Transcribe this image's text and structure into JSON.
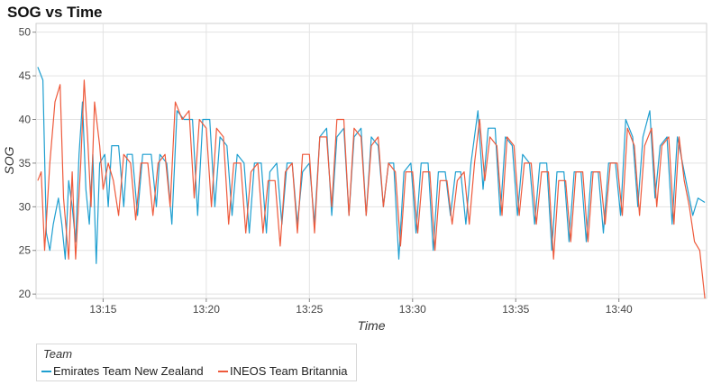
{
  "chart_data": {
    "type": "line",
    "title": "SOG vs Time",
    "xlabel": "Time",
    "ylabel": "SOG",
    "x_range": [
      "13:11:45",
      "13:44:15"
    ],
    "ylim": [
      19.5,
      51
    ],
    "y_ticks": [
      20,
      25,
      30,
      35,
      40,
      45,
      50
    ],
    "x_ticks": [
      "13:15",
      "13:20",
      "13:25",
      "13:30",
      "13:35",
      "13:40"
    ],
    "grid": true,
    "legend": {
      "title": "Team",
      "placement": "bottom-left"
    },
    "series": [
      {
        "name": "Emirates Team New Zealand",
        "color": "#1f9fd0",
        "points": [
          [
            "13:11:50",
            46
          ],
          [
            "13:12:05",
            44.5
          ],
          [
            "13:12:15",
            27
          ],
          [
            "13:12:25",
            25
          ],
          [
            "13:12:35",
            28
          ],
          [
            "13:12:50",
            31
          ],
          [
            "13:13:00",
            28
          ],
          [
            "13:13:10",
            24
          ],
          [
            "13:13:20",
            33
          ],
          [
            "13:13:30",
            30
          ],
          [
            "13:13:40",
            26
          ],
          [
            "13:13:50",
            36
          ],
          [
            "13:14:00",
            42
          ],
          [
            "13:14:10",
            32
          ],
          [
            "13:14:20",
            28
          ],
          [
            "13:14:30",
            36
          ],
          [
            "13:14:40",
            23.5
          ],
          [
            "13:14:50",
            35
          ],
          [
            "13:15:05",
            36
          ],
          [
            "13:15:15",
            30
          ],
          [
            "13:15:25",
            37
          ],
          [
            "13:15:45",
            37
          ],
          [
            "13:16:00",
            30
          ],
          [
            "13:16:10",
            36
          ],
          [
            "13:16:25",
            36
          ],
          [
            "13:16:40",
            29
          ],
          [
            "13:16:55",
            36
          ],
          [
            "13:17:20",
            36
          ],
          [
            "13:17:35",
            30
          ],
          [
            "13:17:45",
            36
          ],
          [
            "13:18:05",
            35
          ],
          [
            "13:18:20",
            28
          ],
          [
            "13:18:35",
            41
          ],
          [
            "13:18:55",
            40
          ],
          [
            "13:19:20",
            40
          ],
          [
            "13:19:35",
            29
          ],
          [
            "13:19:50",
            40
          ],
          [
            "13:20:10",
            40
          ],
          [
            "13:20:25",
            30
          ],
          [
            "13:20:40",
            38
          ],
          [
            "13:21:00",
            37
          ],
          [
            "13:21:15",
            29
          ],
          [
            "13:21:30",
            36
          ],
          [
            "13:21:50",
            35
          ],
          [
            "13:22:05",
            27
          ],
          [
            "13:22:20",
            35
          ],
          [
            "13:22:40",
            35
          ],
          [
            "13:22:55",
            27
          ],
          [
            "13:23:05",
            34
          ],
          [
            "13:23:25",
            35
          ],
          [
            "13:23:40",
            28
          ],
          [
            "13:23:55",
            35
          ],
          [
            "13:24:10",
            35
          ],
          [
            "13:24:25",
            28
          ],
          [
            "13:24:40",
            34
          ],
          [
            "13:25:00",
            35
          ],
          [
            "13:25:15",
            28
          ],
          [
            "13:25:30",
            38
          ],
          [
            "13:25:50",
            39
          ],
          [
            "13:26:05",
            29
          ],
          [
            "13:26:20",
            38
          ],
          [
            "13:26:40",
            39
          ],
          [
            "13:26:55",
            29
          ],
          [
            "13:27:10",
            38
          ],
          [
            "13:27:30",
            39
          ],
          [
            "13:27:45",
            29
          ],
          [
            "13:28:00",
            38
          ],
          [
            "13:28:20",
            37
          ],
          [
            "13:28:35",
            30
          ],
          [
            "13:28:50",
            35
          ],
          [
            "13:29:05",
            35
          ],
          [
            "13:29:20",
            24
          ],
          [
            "13:29:35",
            34
          ],
          [
            "13:29:55",
            35
          ],
          [
            "13:30:10",
            27
          ],
          [
            "13:30:25",
            35
          ],
          [
            "13:30:45",
            35
          ],
          [
            "13:31:00",
            25
          ],
          [
            "13:31:15",
            34
          ],
          [
            "13:31:35",
            34
          ],
          [
            "13:31:50",
            29
          ],
          [
            "13:32:05",
            34
          ],
          [
            "13:32:20",
            34
          ],
          [
            "13:32:35",
            28
          ],
          [
            "13:32:50",
            35
          ],
          [
            "13:33:10",
            41
          ],
          [
            "13:33:25",
            32
          ],
          [
            "13:33:40",
            39
          ],
          [
            "13:34:00",
            39
          ],
          [
            "13:34:15",
            29
          ],
          [
            "13:34:30",
            38
          ],
          [
            "13:34:50",
            37
          ],
          [
            "13:35:05",
            29
          ],
          [
            "13:35:20",
            36
          ],
          [
            "13:35:40",
            35
          ],
          [
            "13:35:55",
            28
          ],
          [
            "13:36:10",
            35
          ],
          [
            "13:36:30",
            35
          ],
          [
            "13:36:45",
            25
          ],
          [
            "13:37:00",
            34
          ],
          [
            "13:37:20",
            34
          ],
          [
            "13:37:35",
            26
          ],
          [
            "13:37:50",
            34
          ],
          [
            "13:38:10",
            34
          ],
          [
            "13:38:25",
            26
          ],
          [
            "13:38:40",
            34
          ],
          [
            "13:39:00",
            34
          ],
          [
            "13:39:15",
            27
          ],
          [
            "13:39:30",
            35
          ],
          [
            "13:39:50",
            35
          ],
          [
            "13:40:05",
            29
          ],
          [
            "13:40:20",
            40
          ],
          [
            "13:40:40",
            38
          ],
          [
            "13:40:55",
            30
          ],
          [
            "13:41:10",
            38
          ],
          [
            "13:41:30",
            41
          ],
          [
            "13:41:45",
            31
          ],
          [
            "13:42:00",
            37
          ],
          [
            "13:42:20",
            38
          ],
          [
            "13:42:35",
            28
          ],
          [
            "13:42:50",
            38
          ],
          [
            "13:43:05",
            35
          ],
          [
            "13:43:20",
            32
          ],
          [
            "13:43:35",
            29
          ],
          [
            "13:43:50",
            31
          ],
          [
            "13:44:10",
            30.5
          ]
        ]
      },
      {
        "name": "INEOS Team Britannia",
        "color": "#ee5a3c",
        "points": [
          [
            "13:11:50",
            33
          ],
          [
            "13:12:00",
            34
          ],
          [
            "13:12:10",
            25
          ],
          [
            "13:12:25",
            35
          ],
          [
            "13:12:40",
            42
          ],
          [
            "13:12:55",
            44
          ],
          [
            "13:13:05",
            31
          ],
          [
            "13:13:20",
            24
          ],
          [
            "13:13:30",
            34
          ],
          [
            "13:13:40",
            24
          ],
          [
            "13:13:55",
            35
          ],
          [
            "13:14:05",
            44.5
          ],
          [
            "13:14:15",
            38
          ],
          [
            "13:14:25",
            30
          ],
          [
            "13:14:35",
            42
          ],
          [
            "13:14:50",
            37
          ],
          [
            "13:15:00",
            32
          ],
          [
            "13:15:15",
            35
          ],
          [
            "13:15:30",
            33
          ],
          [
            "13:15:45",
            29
          ],
          [
            "13:16:00",
            36
          ],
          [
            "13:16:20",
            35
          ],
          [
            "13:16:35",
            28.5
          ],
          [
            "13:16:50",
            35
          ],
          [
            "13:17:10",
            35
          ],
          [
            "13:17:25",
            29
          ],
          [
            "13:17:40",
            35
          ],
          [
            "13:18:00",
            36
          ],
          [
            "13:18:15",
            30
          ],
          [
            "13:18:30",
            42
          ],
          [
            "13:18:50",
            40
          ],
          [
            "13:19:10",
            41
          ],
          [
            "13:19:25",
            31
          ],
          [
            "13:19:40",
            40
          ],
          [
            "13:20:00",
            39
          ],
          [
            "13:20:15",
            30
          ],
          [
            "13:20:30",
            39
          ],
          [
            "13:20:50",
            38
          ],
          [
            "13:21:05",
            28
          ],
          [
            "13:21:20",
            35
          ],
          [
            "13:21:40",
            35
          ],
          [
            "13:21:55",
            27
          ],
          [
            "13:22:10",
            34
          ],
          [
            "13:22:30",
            35
          ],
          [
            "13:22:45",
            27
          ],
          [
            "13:23:00",
            33
          ],
          [
            "13:23:20",
            33
          ],
          [
            "13:23:35",
            25.5
          ],
          [
            "13:23:50",
            34
          ],
          [
            "13:24:10",
            35
          ],
          [
            "13:24:25",
            27
          ],
          [
            "13:24:40",
            36
          ],
          [
            "13:25:00",
            36
          ],
          [
            "13:25:15",
            27
          ],
          [
            "13:25:30",
            38
          ],
          [
            "13:25:50",
            38
          ],
          [
            "13:26:05",
            30
          ],
          [
            "13:26:20",
            40
          ],
          [
            "13:26:40",
            40
          ],
          [
            "13:26:55",
            29
          ],
          [
            "13:27:10",
            39
          ],
          [
            "13:27:30",
            38
          ],
          [
            "13:27:45",
            29
          ],
          [
            "13:28:00",
            37
          ],
          [
            "13:28:20",
            38
          ],
          [
            "13:28:35",
            30
          ],
          [
            "13:28:50",
            35
          ],
          [
            "13:29:10",
            34
          ],
          [
            "13:29:25",
            25.5
          ],
          [
            "13:29:40",
            34
          ],
          [
            "13:30:00",
            34
          ],
          [
            "13:30:15",
            27
          ],
          [
            "13:30:30",
            34
          ],
          [
            "13:30:50",
            34
          ],
          [
            "13:31:05",
            25
          ],
          [
            "13:31:20",
            33
          ],
          [
            "13:31:40",
            33
          ],
          [
            "13:31:55",
            28
          ],
          [
            "13:32:10",
            33
          ],
          [
            "13:32:30",
            34
          ],
          [
            "13:32:45",
            28
          ],
          [
            "13:33:00",
            35
          ],
          [
            "13:33:15",
            40
          ],
          [
            "13:33:30",
            33
          ],
          [
            "13:33:45",
            38
          ],
          [
            "13:34:05",
            37
          ],
          [
            "13:34:20",
            29
          ],
          [
            "13:34:35",
            38
          ],
          [
            "13:34:55",
            37
          ],
          [
            "13:35:10",
            29
          ],
          [
            "13:35:25",
            35
          ],
          [
            "13:35:45",
            35
          ],
          [
            "13:36:00",
            28
          ],
          [
            "13:36:15",
            34
          ],
          [
            "13:36:35",
            34
          ],
          [
            "13:36:50",
            24
          ],
          [
            "13:37:05",
            33
          ],
          [
            "13:37:25",
            33
          ],
          [
            "13:37:40",
            26
          ],
          [
            "13:37:55",
            34
          ],
          [
            "13:38:15",
            34
          ],
          [
            "13:38:30",
            26
          ],
          [
            "13:38:45",
            34
          ],
          [
            "13:39:05",
            34
          ],
          [
            "13:39:20",
            28
          ],
          [
            "13:39:35",
            35
          ],
          [
            "13:39:55",
            35
          ],
          [
            "13:40:10",
            29
          ],
          [
            "13:40:25",
            39
          ],
          [
            "13:40:45",
            37
          ],
          [
            "13:41:00",
            29
          ],
          [
            "13:41:15",
            37
          ],
          [
            "13:41:35",
            39
          ],
          [
            "13:41:50",
            30
          ],
          [
            "13:42:05",
            37
          ],
          [
            "13:42:25",
            38
          ],
          [
            "13:42:40",
            28
          ],
          [
            "13:42:55",
            38
          ],
          [
            "13:43:10",
            33
          ],
          [
            "13:43:25",
            30
          ],
          [
            "13:43:40",
            26
          ],
          [
            "13:43:55",
            25
          ],
          [
            "13:44:10",
            19.5
          ]
        ]
      }
    ]
  }
}
